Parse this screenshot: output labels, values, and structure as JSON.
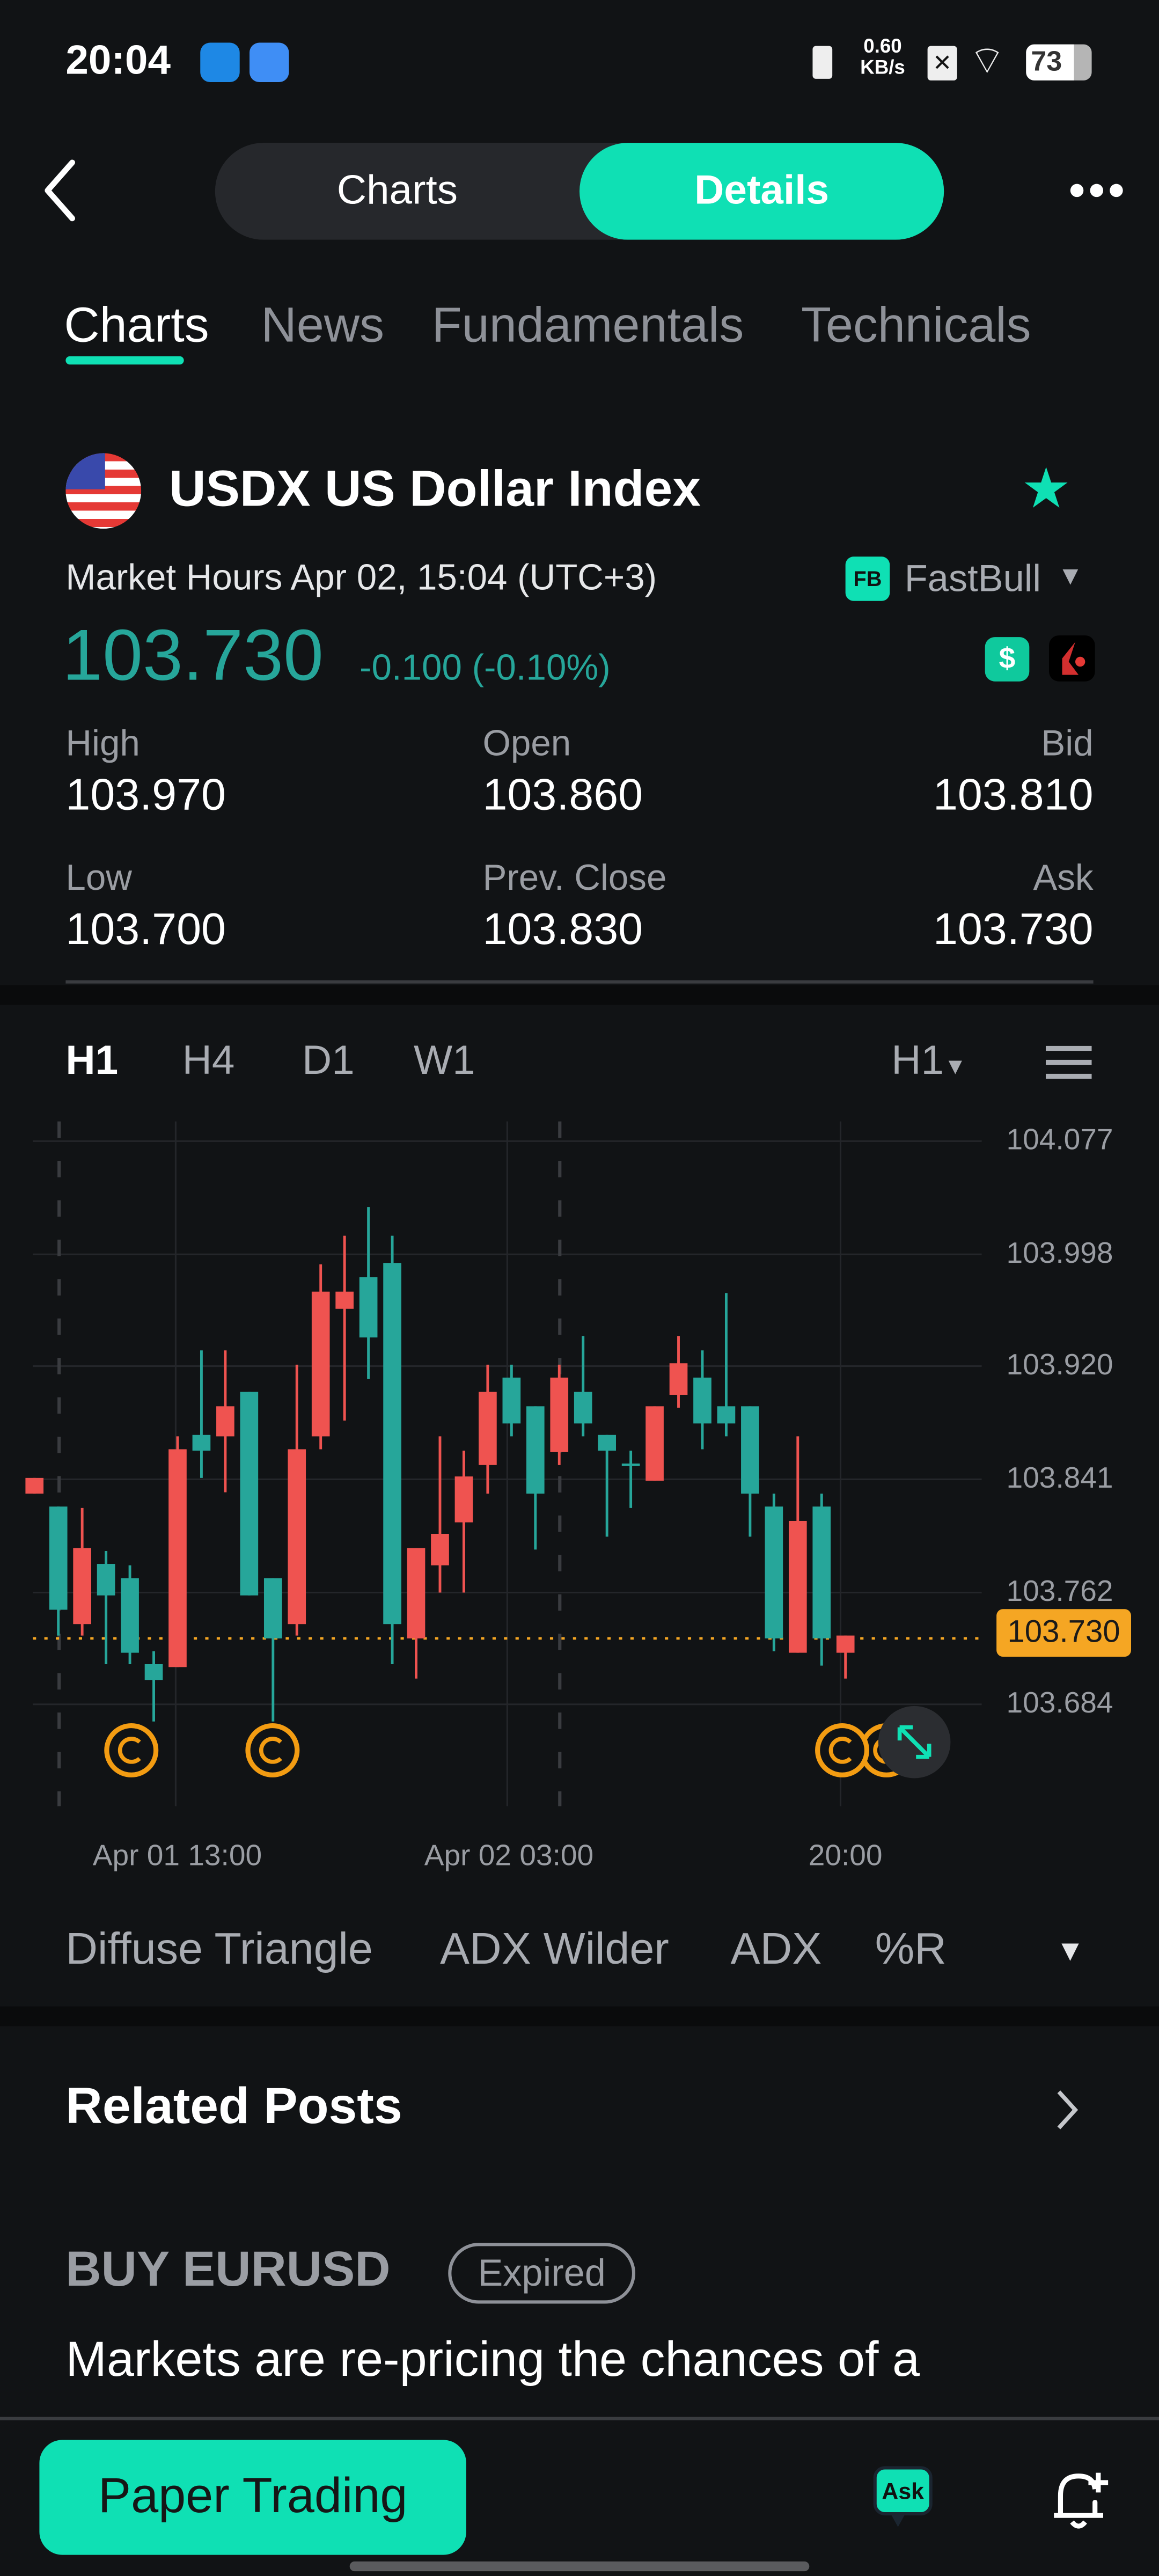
{
  "status_bar": {
    "time": "20:04",
    "net_speed": "0.60",
    "net_unit": "KB/s",
    "battery": "73"
  },
  "header": {
    "segments": [
      "Charts",
      "Details"
    ],
    "active_segment": "Details",
    "more_icon": "more-dots-icon"
  },
  "tabs": {
    "items": [
      "Charts",
      "News",
      "Fundamentals",
      "Technicals"
    ],
    "active": "Charts"
  },
  "instrument": {
    "title": "USDX US Dollar Index",
    "market_hours": "Market Hours Apr 02, 15:04 (UTC+3)",
    "source": "FastBull",
    "source_logo": "FB",
    "price": "103.730",
    "change": "-0.100 (-0.10%)",
    "stats": [
      {
        "label": "High",
        "value": "103.970"
      },
      {
        "label": "Open",
        "value": "103.860"
      },
      {
        "label": "Bid",
        "value": "103.810"
      },
      {
        "label": "Low",
        "value": "103.700"
      },
      {
        "label": "Prev. Close",
        "value": "103.830"
      },
      {
        "label": "Ask",
        "value": "103.730"
      }
    ],
    "colors": {
      "accent": "#0fe0b4",
      "price": "#26a69a",
      "up": "#ef5350",
      "down": "#26a69a",
      "current_price": "#f5a623"
    }
  },
  "chart_controls": {
    "timeframes": [
      "H1",
      "H4",
      "D1",
      "W1"
    ],
    "active": "H1",
    "selector": "H1"
  },
  "chart_data": {
    "type": "candlestick",
    "interval": "H1",
    "y_ticks": [
      "104.077",
      "103.998",
      "103.920",
      "103.841",
      "103.762",
      "103.684"
    ],
    "ylim": [
      103.684,
      104.077
    ],
    "x_ticks": [
      "Apr 01 13:00",
      "Apr 02 03:00",
      "20:00"
    ],
    "current_price": "103.730",
    "grid": true,
    "candles": [
      {
        "o": 103.831,
        "h": 103.842,
        "l": 103.831,
        "c": 103.842
      },
      {
        "o": 103.822,
        "h": 103.822,
        "l": 103.732,
        "c": 103.75
      },
      {
        "o": 103.74,
        "h": 103.821,
        "l": 103.732,
        "c": 103.793
      },
      {
        "o": 103.782,
        "h": 103.791,
        "l": 103.712,
        "c": 103.76
      },
      {
        "o": 103.772,
        "h": 103.781,
        "l": 103.712,
        "c": 103.72
      },
      {
        "o": 103.712,
        "h": 103.721,
        "l": 103.672,
        "c": 103.701
      },
      {
        "o": 103.71,
        "h": 103.871,
        "l": 103.71,
        "c": 103.862
      },
      {
        "o": 103.872,
        "h": 103.931,
        "l": 103.842,
        "c": 103.861
      },
      {
        "o": 103.871,
        "h": 103.931,
        "l": 103.832,
        "c": 103.892
      },
      {
        "o": 103.902,
        "h": 103.902,
        "l": 103.76,
        "c": 103.76
      },
      {
        "o": 103.772,
        "h": 103.772,
        "l": 103.672,
        "c": 103.73
      },
      {
        "o": 103.74,
        "h": 103.921,
        "l": 103.732,
        "c": 103.862
      },
      {
        "o": 103.871,
        "h": 103.991,
        "l": 103.862,
        "c": 103.972
      },
      {
        "o": 103.96,
        "h": 104.011,
        "l": 103.882,
        "c": 103.972
      },
      {
        "o": 103.982,
        "h": 104.031,
        "l": 103.911,
        "c": 103.94
      },
      {
        "o": 103.992,
        "h": 104.011,
        "l": 103.712,
        "c": 103.74
      },
      {
        "o": 103.73,
        "h": 103.793,
        "l": 103.702,
        "c": 103.793
      },
      {
        "o": 103.781,
        "h": 103.871,
        "l": 103.762,
        "c": 103.803
      },
      {
        "o": 103.811,
        "h": 103.861,
        "l": 103.762,
        "c": 103.843
      },
      {
        "o": 103.851,
        "h": 103.921,
        "l": 103.831,
        "c": 103.902
      },
      {
        "o": 103.912,
        "h": 103.921,
        "l": 103.871,
        "c": 103.88
      },
      {
        "o": 103.892,
        "h": 103.892,
        "l": 103.792,
        "c": 103.831
      },
      {
        "o": 103.86,
        "h": 103.921,
        "l": 103.851,
        "c": 103.912
      },
      {
        "o": 103.902,
        "h": 103.941,
        "l": 103.871,
        "c": 103.88
      },
      {
        "o": 103.872,
        "h": 103.872,
        "l": 103.801,
        "c": 103.861
      },
      {
        "o": 103.852,
        "h": 103.861,
        "l": 103.821,
        "c": 103.851
      },
      {
        "o": 103.84,
        "h": 103.892,
        "l": 103.84,
        "c": 103.892
      },
      {
        "o": 103.9,
        "h": 103.941,
        "l": 103.891,
        "c": 103.922
      },
      {
        "o": 103.912,
        "h": 103.931,
        "l": 103.862,
        "c": 103.88
      },
      {
        "o": 103.892,
        "h": 103.971,
        "l": 103.871,
        "c": 103.88
      },
      {
        "o": 103.892,
        "h": 103.892,
        "l": 103.801,
        "c": 103.831
      },
      {
        "o": 103.822,
        "h": 103.831,
        "l": 103.721,
        "c": 103.73
      },
      {
        "o": 103.72,
        "h": 103.871,
        "l": 103.72,
        "c": 103.812
      },
      {
        "o": 103.822,
        "h": 103.831,
        "l": 103.711,
        "c": 103.73
      },
      {
        "o": 103.72,
        "h": 103.732,
        "l": 103.702,
        "c": 103.732
      }
    ]
  },
  "indicators": [
    "Diffuse Triangle",
    "ADX Wilder",
    "ADX",
    "%R"
  ],
  "related_posts": {
    "title": "Related Posts",
    "post": {
      "signal": "BUY EURUSD",
      "badge": "Expired",
      "headline": "Markets are re-pricing the chances of a"
    }
  },
  "bottom_bar": {
    "paper_trading": "Paper Trading",
    "ask": "Ask"
  }
}
